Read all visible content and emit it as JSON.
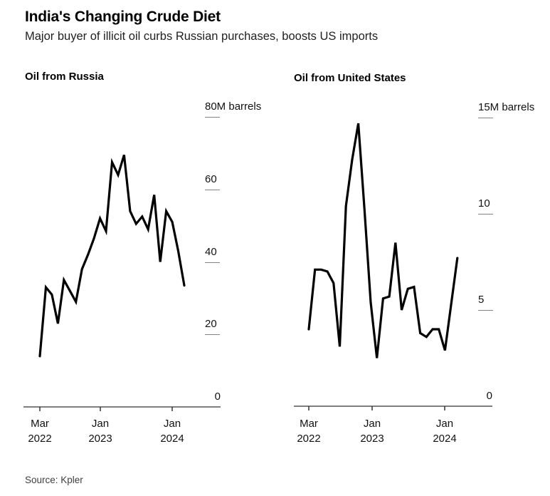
{
  "header": {
    "title": "India's Changing Crude Diet",
    "subtitle": "Major buyer of illicit oil curbs Russian purchases, boosts US imports"
  },
  "source": {
    "text": "Source: Kpler"
  },
  "colors": {
    "line": "#000000",
    "axis": "#333333",
    "tick_dash": "#828282",
    "text": "#000000",
    "muted_text": "#3f3f3f",
    "background": "#ffffff"
  },
  "chart_data": [
    {
      "type": "line",
      "title": "Oil from Russia",
      "unit": "M barrels",
      "x": [
        "Mar 2022",
        "Apr 2022",
        "May 2022",
        "Jun 2022",
        "Jul 2022",
        "Aug 2022",
        "Sep 2022",
        "Oct 2022",
        "Nov 2022",
        "Dec 2022",
        "Jan 2023",
        "Feb 2023",
        "Mar 2023",
        "Apr 2023",
        "May 2023",
        "Jun 2023",
        "Jul 2023",
        "Aug 2023",
        "Sep 2023",
        "Oct 2023",
        "Nov 2023",
        "Dec 2023",
        "Jan 2024",
        "Feb 2024",
        "Mar 2024"
      ],
      "values": [
        14,
        33,
        31,
        23,
        35,
        32,
        29,
        38,
        42,
        46.5,
        52,
        48.5,
        67.5,
        64,
        69.5,
        54,
        50.5,
        52.5,
        49,
        58.5,
        40,
        54,
        51,
        43,
        33.5
      ],
      "ylim": [
        0,
        80
      ],
      "grid": false,
      "legend": "none",
      "yticks": [
        {
          "value": 80,
          "label": "80M barrels"
        },
        {
          "value": 60,
          "label": "60"
        },
        {
          "value": 40,
          "label": "40"
        },
        {
          "value": 20,
          "label": "20"
        },
        {
          "value": 0,
          "label": "0"
        }
      ],
      "xticks": [
        {
          "index": 0,
          "month": "Mar",
          "year": "2022"
        },
        {
          "index": 10,
          "month": "Jan",
          "year": "2023"
        },
        {
          "index": 22,
          "month": "Jan",
          "year": "2024"
        }
      ]
    },
    {
      "type": "line",
      "title": "Oil from United States",
      "unit": "M barrels",
      "x": [
        "Mar 2022",
        "Apr 2022",
        "May 2022",
        "Jun 2022",
        "Jul 2022",
        "Aug 2022",
        "Sep 2022",
        "Oct 2022",
        "Nov 2022",
        "Dec 2022",
        "Jan 2023",
        "Feb 2023",
        "Mar 2023",
        "Apr 2023",
        "May 2023",
        "Jun 2023",
        "Jul 2023",
        "Aug 2023",
        "Sep 2023",
        "Oct 2023",
        "Nov 2023",
        "Dec 2023",
        "Jan 2024",
        "Feb 2024",
        "Mar 2024"
      ],
      "values": [
        4,
        7.1,
        7.1,
        7.0,
        6.4,
        3.1,
        10.4,
        12.8,
        14.7,
        10.2,
        5.4,
        2.5,
        5.6,
        5.7,
        8.5,
        5.0,
        6.1,
        6.2,
        3.8,
        3.6,
        4.0,
        4.0,
        2.9,
        5.3,
        7.7
      ],
      "ylim": [
        0,
        15
      ],
      "grid": false,
      "legend": "none",
      "yticks": [
        {
          "value": 15,
          "label": "15M barrels"
        },
        {
          "value": 10,
          "label": "10"
        },
        {
          "value": 5,
          "label": "5"
        },
        {
          "value": 0,
          "label": "0"
        }
      ],
      "xticks": [
        {
          "index": 0,
          "month": "Mar",
          "year": "2022"
        },
        {
          "index": 10,
          "month": "Jan",
          "year": "2023"
        },
        {
          "index": 22,
          "month": "Jan",
          "year": "2024"
        }
      ]
    }
  ]
}
